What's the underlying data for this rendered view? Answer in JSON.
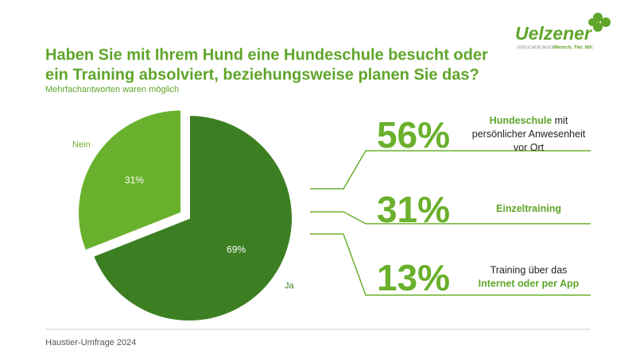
{
  "header": {
    "logo": "Uelzener",
    "tagline_prefix": "VERSICHERUNGEN",
    "tagline": "Mensch. Tier. Wir."
  },
  "chart_data": {
    "type": "pie",
    "title": [
      "Haben Sie mit Ihrem Hund eine Hundeschule besucht oder",
      "ein Training absolviert, beziehungsweise planen Sie das?"
    ],
    "subtitle": "Mehrfachantworten waren möglich",
    "categories": [
      "Ja",
      "Nein"
    ],
    "values": [
      69,
      31
    ],
    "value_labels": [
      "69%",
      "31%"
    ],
    "colors": [
      "#3b7f22",
      "#69b12c"
    ]
  },
  "breakdown": [
    {
      "percent": "56%",
      "lines": [
        [
          {
            "text": "Hundeschule",
            "highlight": true
          },
          {
            "text": " mit",
            "highlight": false
          }
        ],
        [
          {
            "text": "persönlicher Anwesenheit",
            "highlight": false
          }
        ],
        [
          {
            "text": "vor Ort",
            "highlight": false
          }
        ]
      ]
    },
    {
      "percent": "31%",
      "lines": [
        [
          {
            "text": "Einzeltraining",
            "highlight": true
          }
        ]
      ]
    },
    {
      "percent": "13%",
      "lines": [
        [
          {
            "text": "Training über das",
            "highlight": false
          }
        ],
        [
          {
            "text": "Internet oder per App",
            "highlight": true
          }
        ]
      ]
    }
  ],
  "footer": "Haustier-Umfrage 2024"
}
